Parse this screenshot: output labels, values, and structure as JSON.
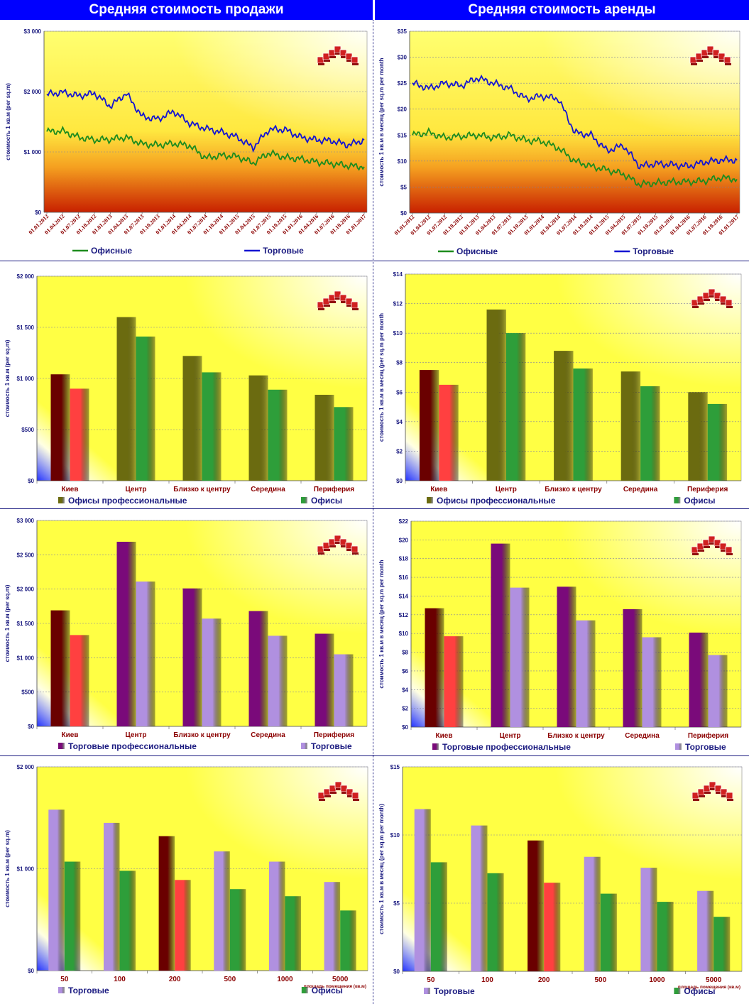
{
  "headers": {
    "left": "Средняя стоимость продажи",
    "right": "Средняя стоимость аренды"
  },
  "colors": {
    "header_bg": "#0000ff",
    "offices_line": "#1e8c1e",
    "retail_line": "#1414d2",
    "offices_prof": "#6b6b10",
    "offices": "#2e9e3a",
    "retail_prof": "#7a0a7a",
    "retail": "#b090e0",
    "kiev_prof": "#6a0000",
    "kiev": "#ff4040"
  },
  "chart_data": [
    {
      "id": "sale_trend",
      "type": "line",
      "ylabel": "стоимость 1 кв.м (per sq.m)",
      "yticks": [
        "$0",
        "$1 000",
        "$2 000",
        "$3 000"
      ],
      "ylim": [
        0,
        3500
      ],
      "x": [
        "01.01.2012",
        "01.04.2012",
        "01.07.2012",
        "01.10.2012",
        "01.01.2013",
        "01.04.2013",
        "01.07.2013",
        "01.10.2013",
        "01.01.2014",
        "01.04.2014",
        "01.07.2014",
        "01.10.2014",
        "01.01.2015",
        "01.04.2015",
        "01.07.2015",
        "01.10.2015",
        "01.01.2016",
        "01.04.2016",
        "01.07.2016",
        "01.10.2016",
        "01.01.2017"
      ],
      "series": [
        {
          "name": "Офисные",
          "values": [
            1560,
            1570,
            1450,
            1400,
            1410,
            1450,
            1320,
            1300,
            1330,
            1290,
            1050,
            1100,
            1080,
            950,
            1150,
            1060,
            1030,
            970,
            940,
            900,
            880
          ]
        },
        {
          "name": "Торговые",
          "values": [
            2280,
            2320,
            2250,
            2300,
            2050,
            2300,
            1850,
            1800,
            1950,
            1720,
            1620,
            1550,
            1450,
            1250,
            1600,
            1600,
            1450,
            1400,
            1380,
            1300,
            1400
          ]
        }
      ],
      "grid": true
    },
    {
      "id": "rent_trend",
      "type": "line",
      "ylabel": "стоимость 1 кв.м в месяц (per sq.m per month",
      "yticks": [
        "$0",
        "$5",
        "$10",
        "$15",
        "$20",
        "$25",
        "$30",
        "$35"
      ],
      "ylim": [
        0,
        35
      ],
      "x": [
        "01.01.2012",
        "01.04.2012",
        "01.07.2012",
        "01.10.2012",
        "01.01.2013",
        "01.04.2013",
        "01.07.2013",
        "01.10.2013",
        "01.01.2014",
        "01.04.2014",
        "01.07.2014",
        "01.10.2014",
        "01.01.2015",
        "01.04.2015",
        "01.07.2015",
        "01.10.2015",
        "01.01.2016",
        "01.04.2016",
        "01.07.2016",
        "01.10.2016",
        "01.01.2017"
      ],
      "series": [
        {
          "name": "Офисные",
          "values": [
            15,
            15.5,
            14.5,
            14.8,
            15,
            14.5,
            15,
            14,
            13.8,
            12.5,
            10,
            9,
            8.3,
            7.5,
            5.5,
            5.8,
            6,
            6,
            6.2,
            6.8,
            6.5
          ]
        },
        {
          "name": "Торговые",
          "values": [
            25,
            24,
            25,
            24.5,
            26,
            25,
            24,
            22,
            22.5,
            22,
            15.5,
            15,
            12,
            13,
            9,
            9.5,
            9.3,
            9,
            9.8,
            10.2,
            10.2
          ]
        }
      ],
      "grid": true
    },
    {
      "id": "sale_offices_district",
      "type": "bar",
      "ylabel": "стоимость 1 кв.м (per sq.m)",
      "yticks": [
        "$0",
        "$500",
        "$1 000",
        "$1 500",
        "$2 000"
      ],
      "ylim": [
        0,
        2000
      ],
      "categories": [
        "Киев",
        "Центр",
        "Близко к центру",
        "Середина",
        "Периферия"
      ],
      "series": [
        {
          "name": "Офисы профессиональные",
          "values": [
            1040,
            1600,
            1220,
            1030,
            840
          ]
        },
        {
          "name": "Офисы",
          "values": [
            900,
            1410,
            1060,
            890,
            720
          ]
        }
      ],
      "grid": true
    },
    {
      "id": "rent_offices_district",
      "type": "bar",
      "ylabel": "стоимость 1 кв.м в месяц (per sq.m per month",
      "yticks": [
        "$0",
        "$2",
        "$4",
        "$6",
        "$8",
        "$10",
        "$12",
        "$14"
      ],
      "ylim": [
        0,
        14
      ],
      "categories": [
        "Киев",
        "Центр",
        "Близко к центру",
        "Середина",
        "Периферия"
      ],
      "series": [
        {
          "name": "Офисы профессиональные",
          "values": [
            7.5,
            11.6,
            8.8,
            7.4,
            6.0
          ]
        },
        {
          "name": "Офисы",
          "values": [
            6.5,
            10.0,
            7.6,
            6.4,
            5.2
          ]
        }
      ],
      "grid": true
    },
    {
      "id": "sale_retail_district",
      "type": "bar",
      "ylabel": "стоимость 1 кв.м (per sq.m)",
      "yticks": [
        "$0",
        "$500",
        "$1 000",
        "$1 500",
        "$2 000",
        "$2 500",
        "$3 000"
      ],
      "ylim": [
        0,
        3000
      ],
      "categories": [
        "Киев",
        "Центр",
        "Близко к центру",
        "Середина",
        "Периферия"
      ],
      "series": [
        {
          "name": "Торговые профессиональные",
          "values": [
            1690,
            2690,
            2010,
            1680,
            1350
          ]
        },
        {
          "name": "Торговые",
          "values": [
            1330,
            2110,
            1570,
            1320,
            1050
          ]
        }
      ],
      "grid": true
    },
    {
      "id": "rent_retail_district",
      "type": "bar",
      "ylabel": "стоимость 1 кв.м в месяц (per sq.m per month",
      "yticks": [
        "$0",
        "$2",
        "$4",
        "$6",
        "$8",
        "$10",
        "$12",
        "$14",
        "$16",
        "$18",
        "$20",
        "$22"
      ],
      "ylim": [
        0,
        22
      ],
      "categories": [
        "Киев",
        "Центр",
        "Близко к центру",
        "Середина",
        "Периферия"
      ],
      "series": [
        {
          "name": "Торговые профессиональные",
          "values": [
            12.7,
            19.6,
            15.0,
            12.6,
            10.1
          ]
        },
        {
          "name": "Торговые",
          "values": [
            9.7,
            14.9,
            11.4,
            9.6,
            7.7
          ]
        }
      ],
      "grid": true
    },
    {
      "id": "sale_by_area",
      "type": "bar",
      "ylabel": "стоимость 1 кв.м (per sq.m)",
      "xlabel": "площадь помещения (кв.м)",
      "yticks": [
        "$0",
        "$1 000",
        "$2 000"
      ],
      "ylim": [
        0,
        2000
      ],
      "categories": [
        "50",
        "100",
        "200",
        "500",
        "1000",
        "5000"
      ],
      "series": [
        {
          "name": "Торговые",
          "values": [
            1580,
            1450,
            1320,
            1170,
            1070,
            870
          ]
        },
        {
          "name": "Офисы",
          "values": [
            1070,
            980,
            890,
            800,
            730,
            590
          ]
        }
      ],
      "grid": true
    },
    {
      "id": "rent_by_area",
      "type": "bar",
      "ylabel": "стоимость 1 кв.м в месяц (per sq.m per month)",
      "xlabel": "площадь помещения (кв.м)",
      "yticks": [
        "$0",
        "$5",
        "$10",
        "$15"
      ],
      "ylim": [
        0,
        15
      ],
      "categories": [
        "50",
        "100",
        "200",
        "500",
        "1000",
        "5000"
      ],
      "series": [
        {
          "name": "Торговые",
          "values": [
            11.9,
            10.7,
            9.6,
            8.4,
            7.6,
            5.9
          ]
        },
        {
          "name": "Офисы",
          "values": [
            8.0,
            7.2,
            6.5,
            5.7,
            5.1,
            4.0
          ]
        }
      ],
      "grid": true
    }
  ]
}
